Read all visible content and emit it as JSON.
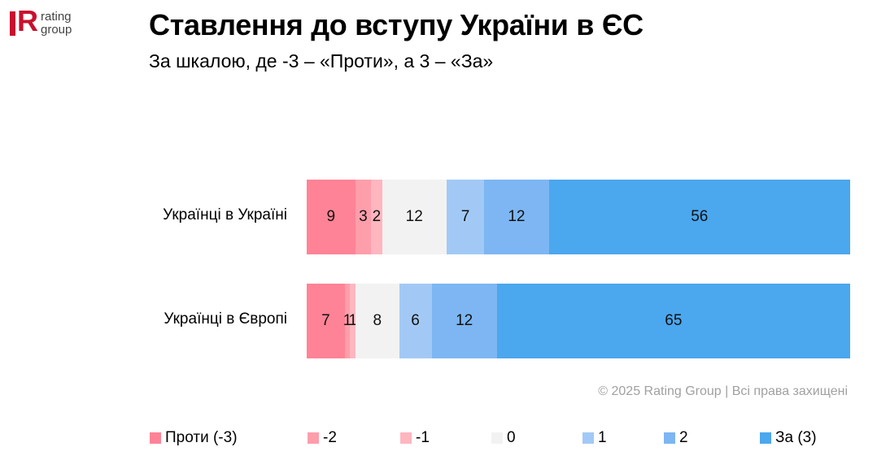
{
  "logo": {
    "mark": "R",
    "line1": "rating",
    "line2": "group"
  },
  "header": {
    "title": "Ставлення до вступу України в ЄС",
    "subtitle": "За шкалою, де -3 – «Проти», а 3 – «За»"
  },
  "copyright": "© 2025 Rating Group | Всі права захищені",
  "legend": [
    {
      "label": "Проти (-3)",
      "color": "#ff8396"
    },
    {
      "label": "-2",
      "color": "#ff9eab"
    },
    {
      "label": "-1",
      "color": "#ffb6bf"
    },
    {
      "label": "0",
      "color": "#f2f2f2"
    },
    {
      "label": "1",
      "color": "#a2c9f5"
    },
    {
      "label": "2",
      "color": "#7db6f2"
    },
    {
      "label": "За (3)",
      "color": "#4ba7ee"
    }
  ],
  "rows": [
    {
      "label": "Українці в Україні",
      "values": [
        "9",
        "3",
        "2",
        "12",
        "7",
        "12",
        "56"
      ]
    },
    {
      "label": "Українці в Європі",
      "values": [
        "7",
        "1",
        "1",
        "8",
        "6",
        "12",
        "65"
      ]
    }
  ],
  "chart_data": {
    "type": "bar",
    "orientation": "horizontal",
    "stacked": true,
    "title": "Ставлення до вступу України в ЄС",
    "subtitle": "За шкалою, де -3 – «Проти», а 3 – «За»",
    "categories": [
      "Українці в Україні",
      "Українці в Європі"
    ],
    "series": [
      {
        "name": "Проти (-3)",
        "color": "#ff8396",
        "values": [
          9,
          7
        ]
      },
      {
        "name": "-2",
        "color": "#ff9eab",
        "values": [
          3,
          1
        ]
      },
      {
        "name": "-1",
        "color": "#ffb6bf",
        "values": [
          2,
          1
        ]
      },
      {
        "name": "0",
        "color": "#f2f2f2",
        "values": [
          12,
          8
        ]
      },
      {
        "name": "1",
        "color": "#a2c9f5",
        "values": [
          7,
          6
        ]
      },
      {
        "name": "2",
        "color": "#7db6f2",
        "values": [
          12,
          12
        ]
      },
      {
        "name": "За (3)",
        "color": "#4ba7ee",
        "values": [
          56,
          65
        ]
      }
    ],
    "xlabel": "",
    "ylabel": "",
    "legend_position": "bottom",
    "grid": false,
    "data_labels": true,
    "units": "%"
  }
}
